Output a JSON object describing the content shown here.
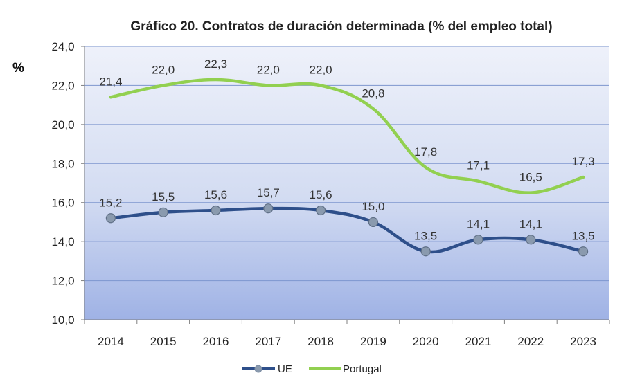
{
  "chart_data": {
    "type": "line",
    "title": "Gráfico 20. Contratos de duración determinada (% del empleo total)",
    "xlabel": "",
    "ylabel": "%",
    "ylim": [
      10.0,
      24.0
    ],
    "yticks": [
      "10,0",
      "12,0",
      "14,0",
      "16,0",
      "18,0",
      "20,0",
      "22,0",
      "24,0"
    ],
    "categories": [
      "2014",
      "2015",
      "2016",
      "2017",
      "2018",
      "2019",
      "2020",
      "2021",
      "2022",
      "2023"
    ],
    "series": [
      {
        "name": "UE",
        "color": "#2E4F8A",
        "marker_color": "#8A9AAE",
        "values": [
          15.2,
          15.5,
          15.6,
          15.7,
          15.6,
          15.0,
          13.5,
          14.1,
          14.1,
          13.5
        ],
        "labels": [
          "15,2",
          "15,5",
          "15,6",
          "15,7",
          "15,6",
          "15,0",
          "13,5",
          "14,1",
          "14,1",
          "13,5"
        ]
      },
      {
        "name": "Portugal",
        "color": "#92D050",
        "values": [
          21.4,
          22.0,
          22.3,
          22.0,
          22.0,
          20.8,
          17.8,
          17.1,
          16.5,
          17.3
        ],
        "labels": [
          "21,4",
          "22,0",
          "22,3",
          "22,0",
          "22,0",
          "20,8",
          "17,8",
          "17,1",
          "16,5",
          "17,3"
        ]
      }
    ],
    "legend_position": "bottom-center",
    "grid": true
  }
}
